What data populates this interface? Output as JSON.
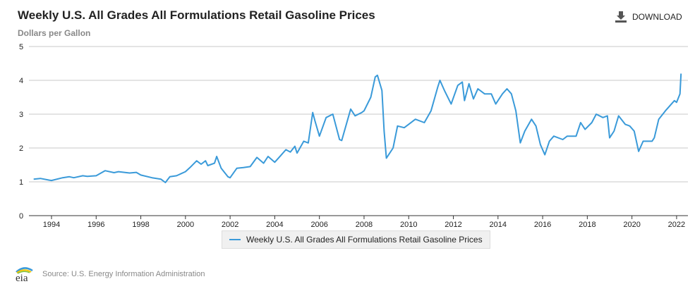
{
  "header": {
    "title": "Weekly U.S. All Grades All Formulations Retail Gasoline Prices",
    "units": "Dollars per Gallon",
    "download_label": "DOWNLOAD"
  },
  "footer": {
    "source": "Source: U.S. Energy Information Administration",
    "logo_text": "eia"
  },
  "chart_data": {
    "type": "line",
    "title": "Weekly U.S. All Grades All Formulations Retail Gasoline Prices",
    "ylabel": "Dollars per Gallon",
    "xlabel": "",
    "xlim": [
      1993.2,
      2022.3
    ],
    "ylim": [
      0,
      5
    ],
    "xticks": [
      "1994",
      "1996",
      "1998",
      "2000",
      "2002",
      "2004",
      "2006",
      "2008",
      "2010",
      "2012",
      "2014",
      "2016",
      "2018",
      "2020",
      "2022"
    ],
    "yticks": [
      "0",
      "1",
      "2",
      "3",
      "4",
      "5"
    ],
    "grid": true,
    "legend_position": "bottom-center",
    "series": [
      {
        "name": "Weekly U.S. All Grades All Formulations Retail Gasoline Prices",
        "color": "#3a9ad9",
        "x": [
          1993.2,
          1993.5,
          1993.9,
          1994.0,
          1994.5,
          1994.8,
          1995.0,
          1995.4,
          1995.6,
          1996.0,
          1996.4,
          1996.8,
          1997.0,
          1997.5,
          1997.8,
          1998.0,
          1998.5,
          1998.9,
          1999.1,
          1999.3,
          1999.6,
          2000.0,
          2000.2,
          2000.5,
          2000.7,
          2000.9,
          2001.0,
          2001.3,
          2001.4,
          2001.6,
          2001.9,
          2002.0,
          2002.3,
          2002.6,
          2002.9,
          2003.2,
          2003.5,
          2003.7,
          2004.0,
          2004.3,
          2004.5,
          2004.7,
          2004.9,
          2005.0,
          2005.3,
          2005.5,
          2005.7,
          2005.8,
          2006.0,
          2006.3,
          2006.6,
          2006.9,
          2007.0,
          2007.4,
          2007.6,
          2007.9,
          2008.0,
          2008.3,
          2008.5,
          2008.6,
          2008.8,
          2008.9,
          2009.0,
          2009.3,
          2009.5,
          2009.8,
          2010.0,
          2010.3,
          2010.7,
          2011.0,
          2011.3,
          2011.4,
          2011.6,
          2011.9,
          2012.2,
          2012.4,
          2012.5,
          2012.7,
          2012.9,
          2013.1,
          2013.4,
          2013.7,
          2013.9,
          2014.2,
          2014.4,
          2014.6,
          2014.8,
          2015.0,
          2015.2,
          2015.5,
          2015.7,
          2015.9,
          2016.1,
          2016.3,
          2016.5,
          2016.9,
          2017.1,
          2017.5,
          2017.7,
          2017.9,
          2018.2,
          2018.4,
          2018.7,
          2018.9,
          2019.0,
          2019.2,
          2019.4,
          2019.7,
          2019.9,
          2020.1,
          2020.3,
          2020.5,
          2020.9,
          2021.0,
          2021.2,
          2021.5,
          2021.9,
          2022.0,
          2022.15,
          2022.2
        ],
        "values": [
          1.08,
          1.1,
          1.05,
          1.04,
          1.12,
          1.15,
          1.12,
          1.18,
          1.16,
          1.18,
          1.33,
          1.27,
          1.3,
          1.26,
          1.28,
          1.2,
          1.12,
          1.08,
          0.98,
          1.15,
          1.18,
          1.3,
          1.42,
          1.62,
          1.52,
          1.62,
          1.48,
          1.55,
          1.75,
          1.4,
          1.15,
          1.12,
          1.4,
          1.42,
          1.45,
          1.72,
          1.55,
          1.75,
          1.58,
          1.8,
          1.95,
          1.88,
          2.05,
          1.85,
          2.2,
          2.15,
          3.05,
          2.8,
          2.35,
          2.9,
          3.0,
          2.25,
          2.22,
          3.15,
          2.95,
          3.05,
          3.1,
          3.5,
          4.1,
          4.15,
          3.7,
          2.5,
          1.7,
          2.0,
          2.65,
          2.6,
          2.7,
          2.85,
          2.75,
          3.1,
          3.8,
          4.0,
          3.7,
          3.3,
          3.85,
          3.95,
          3.4,
          3.9,
          3.45,
          3.75,
          3.6,
          3.6,
          3.3,
          3.6,
          3.75,
          3.6,
          3.1,
          2.15,
          2.5,
          2.85,
          2.65,
          2.1,
          1.8,
          2.2,
          2.35,
          2.25,
          2.35,
          2.35,
          2.75,
          2.55,
          2.75,
          3.0,
          2.9,
          2.95,
          2.3,
          2.5,
          2.95,
          2.7,
          2.65,
          2.5,
          1.9,
          2.2,
          2.2,
          2.3,
          2.85,
          3.1,
          3.4,
          3.35,
          3.6,
          4.2
        ]
      }
    ]
  }
}
